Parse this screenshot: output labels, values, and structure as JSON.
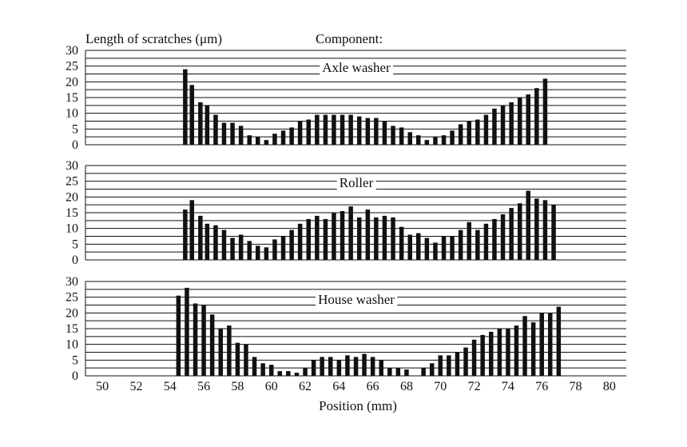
{
  "figure": {
    "ylabel": "Length of scratches (μm)",
    "header": "Component:",
    "xlabel": "Position (mm)"
  },
  "colors": {
    "bar": "#111111",
    "grid": "#111111",
    "background": "#ffffff"
  },
  "chart_data": [
    {
      "type": "bar",
      "title": "Axle washer",
      "ylim": [
        0,
        30
      ],
      "yticks": [
        "0",
        "5",
        "10",
        "15",
        "20",
        "25",
        "30"
      ],
      "xlim": [
        49,
        81
      ],
      "grid": "horizontal every 2.5 μm",
      "x": [
        54.9,
        55.3,
        55.8,
        56.2,
        56.7,
        57.2,
        57.7,
        58.2,
        58.7,
        59.2,
        59.7,
        60.2,
        60.7,
        61.2,
        61.7,
        62.2,
        62.7,
        63.2,
        63.7,
        64.2,
        64.7,
        65.2,
        65.7,
        66.2,
        66.7,
        67.2,
        67.7,
        68.2,
        68.7,
        69.2,
        69.7,
        70.2,
        70.7,
        71.2,
        71.7,
        72.2,
        72.7,
        73.2,
        73.7,
        74.2,
        74.7,
        75.2,
        75.7,
        76.2
      ],
      "values": [
        24,
        19,
        13.5,
        12.5,
        9.5,
        7,
        7,
        6,
        3,
        2.5,
        1.5,
        3.5,
        4.5,
        5.5,
        7.5,
        8,
        9.5,
        9.5,
        9.5,
        9.5,
        9.5,
        9,
        8.5,
        8.5,
        7.5,
        6,
        5.5,
        4,
        3,
        1.5,
        2.5,
        3,
        4.5,
        6.5,
        7.5,
        8,
        9.5,
        11.5,
        12.5,
        13.5,
        15,
        16,
        18,
        21
      ]
    },
    {
      "type": "bar",
      "title": "Roller",
      "ylim": [
        0,
        30
      ],
      "yticks": [
        "0",
        "5",
        "10",
        "15",
        "20",
        "25",
        "30"
      ],
      "xlim": [
        49,
        81
      ],
      "grid": "horizontal every 2.5 μm",
      "x": [
        54.9,
        55.3,
        55.8,
        56.2,
        56.7,
        57.2,
        57.7,
        58.2,
        58.7,
        59.2,
        59.7,
        60.2,
        60.7,
        61.2,
        61.7,
        62.2,
        62.7,
        63.2,
        63.7,
        64.2,
        64.7,
        65.2,
        65.7,
        66.2,
        66.7,
        67.2,
        67.7,
        68.2,
        68.7,
        69.2,
        69.7,
        70.2,
        70.7,
        71.2,
        71.7,
        72.2,
        72.7,
        73.2,
        73.7,
        74.2,
        74.7,
        75.2,
        75.7,
        76.2,
        76.7
      ],
      "values": [
        16,
        19,
        14,
        11.5,
        11,
        9.5,
        7,
        8,
        6,
        4.5,
        4,
        6.5,
        7.5,
        9.5,
        11.5,
        13,
        14,
        13,
        15,
        15.5,
        17,
        13.5,
        16,
        13.5,
        14,
        13.5,
        10.5,
        8,
        8.5,
        7,
        5.5,
        7.5,
        7.5,
        9.5,
        12,
        9.5,
        11.5,
        13,
        14.5,
        16.5,
        18,
        22,
        19.5,
        19,
        17.5
      ]
    },
    {
      "type": "bar",
      "title": "House washer",
      "ylim": [
        0,
        30
      ],
      "yticks": [
        "0",
        "5",
        "10",
        "15",
        "20",
        "25",
        "30"
      ],
      "xlim": [
        49,
        81
      ],
      "xticks": [
        50,
        52,
        54,
        56,
        58,
        60,
        62,
        64,
        66,
        68,
        70,
        72,
        74,
        76,
        78,
        80
      ],
      "grid": "horizontal every 2.5 μm",
      "x": [
        54.5,
        55,
        55.5,
        56,
        56.5,
        57,
        57.5,
        58,
        58.5,
        59,
        59.5,
        60,
        60.5,
        61,
        61.5,
        62,
        62.5,
        63,
        63.5,
        64,
        64.5,
        65,
        65.5,
        66,
        66.5,
        67,
        67.5,
        68,
        68.5,
        69,
        69.5,
        70,
        70.5,
        71,
        71.5,
        72,
        72.5,
        73,
        73.5,
        74,
        74.5,
        75,
        75.5,
        76,
        76.5,
        77
      ],
      "values": [
        25.5,
        28,
        23,
        22.5,
        19.5,
        15,
        16,
        10.5,
        10,
        6,
        4,
        3.5,
        1.5,
        1.5,
        1,
        2.5,
        5,
        6,
        6,
        5,
        6.5,
        6,
        7,
        6,
        5,
        2.5,
        2.5,
        2,
        0,
        2.5,
        4,
        6.5,
        6.5,
        7.5,
        9,
        11.5,
        13,
        14,
        15,
        15,
        16,
        19,
        17,
        20,
        20,
        22
      ]
    }
  ]
}
